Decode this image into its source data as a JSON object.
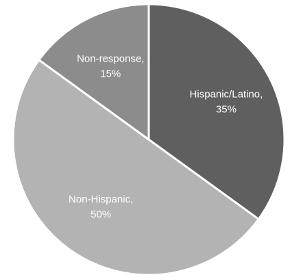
{
  "chart_data": {
    "type": "pie",
    "start_angle_deg": 0,
    "direction": "clockwise",
    "slices": [
      {
        "name": "Hispanic/Latino",
        "value": 35,
        "label_line1": "Hispanic/Latino,",
        "label_line2": "35%",
        "color": "#5f5f5f"
      },
      {
        "name": "Non-Hispanic",
        "value": 50,
        "label_line1": "Non-Hispanic,",
        "label_line2": "50%",
        "color": "#b3b3b3"
      },
      {
        "name": "Non-response",
        "value": 15,
        "label_line1": "Non-response,",
        "label_line2": "15%",
        "color": "#8c8c8c"
      }
    ]
  }
}
